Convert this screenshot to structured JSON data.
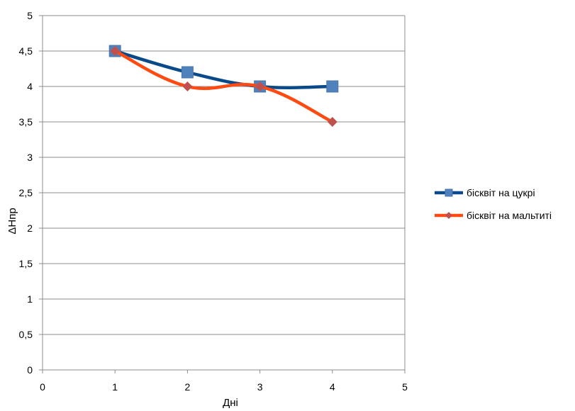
{
  "chart_data": {
    "type": "line",
    "xlabel": "Дні",
    "ylabel": "ΔHпр",
    "xlim": [
      0,
      5
    ],
    "ylim": [
      0,
      5
    ],
    "x_ticks": [
      "0",
      "1",
      "2",
      "3",
      "4",
      "5"
    ],
    "y_ticks": [
      "0",
      "0,5",
      "1",
      "1,5",
      "2",
      "2,5",
      "3",
      "3,5",
      "4",
      "4,5",
      "5"
    ],
    "grid": "horizontal",
    "legend_position": "right",
    "series": [
      {
        "name": "бісквіт на цукрі",
        "x": [
          1,
          2,
          3,
          4
        ],
        "values": [
          4.5,
          4.2,
          4.0,
          4.0
        ],
        "line_color": "#0a4a8a",
        "marker_color": "#4f81bd",
        "marker": "square"
      },
      {
        "name": "бісквіт на мальтиті",
        "x": [
          1,
          2,
          3,
          4
        ],
        "values": [
          4.5,
          4.0,
          4.0,
          3.5
        ],
        "line_color": "#ff4b12",
        "marker_color": "#c0504d",
        "marker": "diamond"
      }
    ]
  }
}
